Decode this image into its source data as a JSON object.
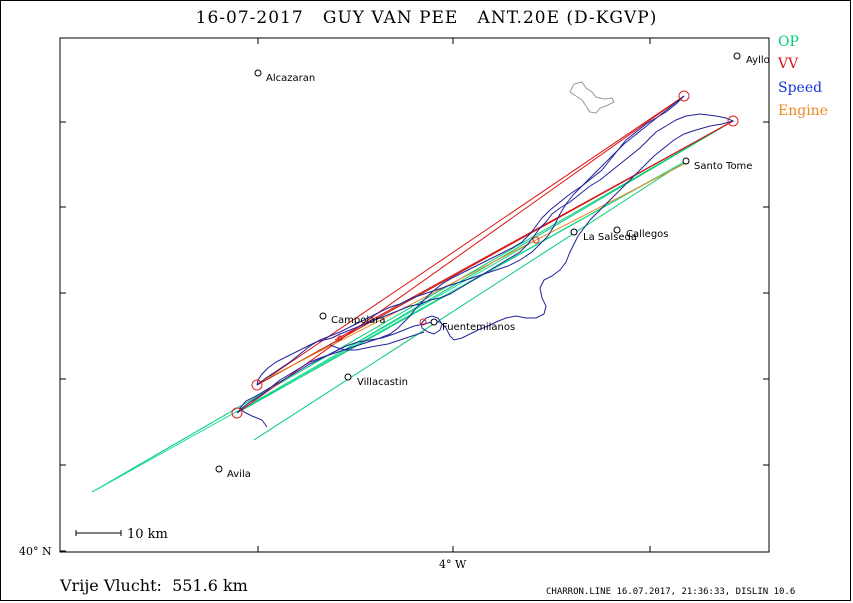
{
  "header": {
    "title": "16-07-2017   GUY VAN PEE   ANT.20E (D-KGVP)"
  },
  "legend": [
    {
      "label": "OP",
      "color": "#00cc77"
    },
    {
      "label": "VV",
      "color": "#dd1111"
    },
    {
      "label": "Speed",
      "color": "#1133dd"
    },
    {
      "label": "Engine",
      "color": "#ee8822"
    }
  ],
  "axes": {
    "lat_label": "40° N",
    "lon_label": "4° W"
  },
  "scale_bar": {
    "label": "10 km"
  },
  "towns": [
    {
      "name": "Alcazaran"
    },
    {
      "name": "Ayllo"
    },
    {
      "name": "Santo Tome"
    },
    {
      "name": "Callegos"
    },
    {
      "name": "La Salseda"
    },
    {
      "name": "Campolara"
    },
    {
      "name": "Fuentemilanos"
    },
    {
      "name": "Villacastin"
    },
    {
      "name": "Avila"
    }
  ],
  "footer": {
    "distance": "Vrije Vlucht:  551.6 km",
    "credits": "CHARRON.LINE 16.07.2017, 21:36:33, DISLIN 10.6"
  },
  "colors": {
    "op": "#00cc77",
    "op_alt": "#22dd99",
    "vv": "#dd1111",
    "track": "#22229a",
    "engine": "#ee8822",
    "turnpoint": "#dd2222",
    "coastline": "#999999"
  }
}
